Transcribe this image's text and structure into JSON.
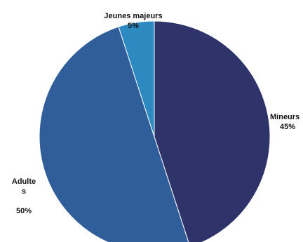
{
  "chart_data": {
    "type": "pie",
    "slices": [
      {
        "label": "Mineurs",
        "value": 45,
        "value_label": "45%",
        "color": "#2e3369"
      },
      {
        "label": "Adulte\ns",
        "value": 50,
        "value_label": "50%",
        "color": "#2f5e9a"
      },
      {
        "label": "Jeunes majeurs",
        "value": 5,
        "value_label": "5%",
        "color": "#2c8ac1"
      }
    ],
    "start_angle_deg": 0,
    "direction": "clockwise",
    "legend": "none"
  }
}
